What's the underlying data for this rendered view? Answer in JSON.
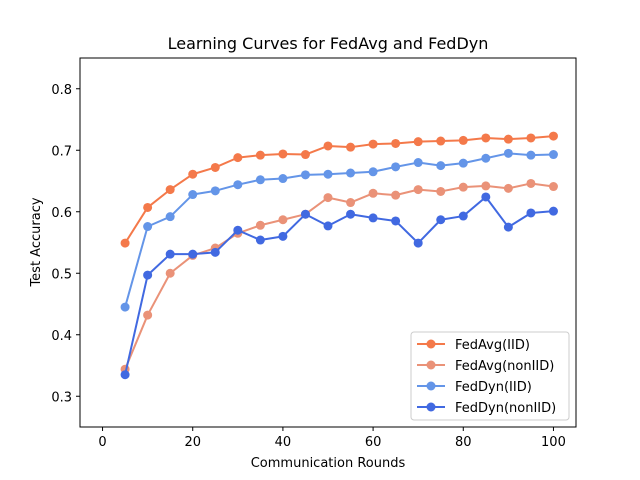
{
  "chart_data": {
    "type": "line",
    "title": "Learning Curves for FedAvg and FedDyn",
    "xlabel": "Communication Rounds",
    "ylabel": "Test Accuracy",
    "xlim": [
      -5,
      105
    ],
    "ylim": [
      0.25,
      0.85
    ],
    "xticks": [
      0,
      20,
      40,
      60,
      80,
      100
    ],
    "yticks": [
      0.3,
      0.4,
      0.5,
      0.6,
      0.7,
      0.8
    ],
    "x": [
      5,
      10,
      15,
      20,
      25,
      30,
      35,
      40,
      45,
      50,
      55,
      60,
      65,
      70,
      75,
      80,
      85,
      90,
      95,
      100
    ],
    "legend_position": "lower-right",
    "grid": false,
    "series": [
      {
        "name": "FedAvg(IID)",
        "color": "#f4794a",
        "values": [
          0.549,
          0.607,
          0.636,
          0.661,
          0.672,
          0.688,
          0.692,
          0.694,
          0.693,
          0.707,
          0.705,
          0.71,
          0.711,
          0.714,
          0.715,
          0.716,
          0.72,
          0.718,
          0.72,
          0.723
        ]
      },
      {
        "name": "FedAvg(nonIID)",
        "color": "#ea9278",
        "values": [
          0.344,
          0.432,
          0.5,
          0.529,
          0.541,
          0.565,
          0.578,
          0.587,
          0.596,
          0.623,
          0.615,
          0.63,
          0.627,
          0.636,
          0.633,
          0.64,
          0.642,
          0.638,
          0.646,
          0.641
        ]
      },
      {
        "name": "FedDyn(IID)",
        "color": "#6495e8",
        "values": [
          0.445,
          0.576,
          0.592,
          0.628,
          0.634,
          0.644,
          0.652,
          0.654,
          0.66,
          0.661,
          0.663,
          0.665,
          0.673,
          0.68,
          0.675,
          0.679,
          0.687,
          0.695,
          0.692,
          0.693
        ]
      },
      {
        "name": "FedDyn(nonIID)",
        "color": "#4169e1",
        "values": [
          0.335,
          0.497,
          0.531,
          0.531,
          0.534,
          0.57,
          0.554,
          0.56,
          0.596,
          0.577,
          0.596,
          0.59,
          0.585,
          0.549,
          0.587,
          0.593,
          0.624,
          0.575,
          0.598,
          0.601
        ]
      }
    ]
  }
}
